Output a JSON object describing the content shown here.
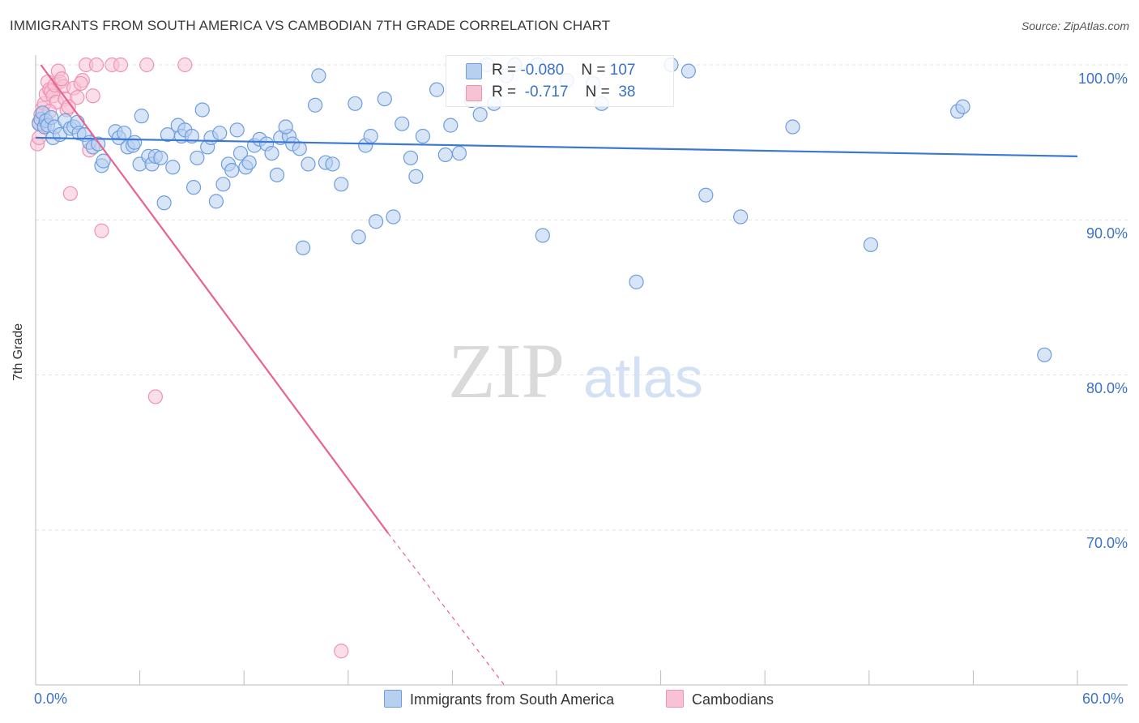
{
  "title": "IMMIGRANTS FROM SOUTH AMERICA VS CAMBODIAN 7TH GRADE CORRELATION CHART",
  "source": "Source: ZipAtlas.com",
  "watermark": {
    "zip": "ZIP",
    "atlas": "atlas"
  },
  "colors": {
    "blue_fill": "#b8d0f0",
    "blue_stroke": "#6d9de0",
    "blue_line": "#3a78d4",
    "pink_fill": "#f7c2d3",
    "pink_stroke": "#ee93b2",
    "pink_line": "#e8638f",
    "grid": "#e2e2e2",
    "axis_text": "#3b72c6"
  },
  "legend": {
    "rows": [
      {
        "r_label": "R =",
        "r_value": "-0.080",
        "n_label": "N =",
        "n_value": "107"
      },
      {
        "r_label": "R =",
        "r_value": "-0.717",
        "n_label": "N =",
        "n_value": "38"
      }
    ]
  },
  "bottom_legend": [
    "Immigrants from South America",
    "Cambodians"
  ],
  "chart_data": {
    "type": "scatter",
    "title": "IMMIGRANTS FROM SOUTH AMERICA VS CAMBODIAN 7TH GRADE CORRELATION CHART",
    "xlabel": "",
    "ylabel": "7th Grade",
    "xlim": [
      0,
      60
    ],
    "ylim": [
      60,
      100
    ],
    "x_tick_labels": [
      "0.0%",
      "60.0%"
    ],
    "y_tick_labels": [
      "100.0%",
      "90.0%",
      "80.0%",
      "70.0%"
    ],
    "y_ticks": [
      100,
      90,
      80,
      70
    ],
    "series": [
      {
        "name": "Immigrants from South America",
        "R": -0.08,
        "N": 107,
        "trend": {
          "x0": 0,
          "y0": 95.3,
          "x1": 60,
          "y1": 94.1
        },
        "points": [
          [
            0.2,
            96.2
          ],
          [
            0.3,
            96.5
          ],
          [
            0.4,
            96.9
          ],
          [
            0.5,
            96.0
          ],
          [
            0.6,
            96.4
          ],
          [
            0.7,
            96.1
          ],
          [
            0.9,
            96.6
          ],
          [
            1.0,
            95.3
          ],
          [
            1.1,
            96.0
          ],
          [
            1.4,
            95.5
          ],
          [
            1.7,
            96.4
          ],
          [
            2.0,
            95.9
          ],
          [
            2.2,
            96.0
          ],
          [
            2.4,
            96.3
          ],
          [
            2.5,
            95.6
          ],
          [
            2.8,
            95.5
          ],
          [
            3.1,
            95.0
          ],
          [
            3.3,
            94.7
          ],
          [
            3.6,
            94.9
          ],
          [
            3.8,
            93.5
          ],
          [
            3.9,
            93.8
          ],
          [
            4.6,
            95.7
          ],
          [
            4.8,
            95.3
          ],
          [
            5.1,
            95.6
          ],
          [
            5.3,
            94.7
          ],
          [
            5.6,
            94.8
          ],
          [
            5.7,
            95.0
          ],
          [
            6.0,
            93.6
          ],
          [
            6.1,
            96.7
          ],
          [
            6.5,
            94.1
          ],
          [
            6.7,
            93.6
          ],
          [
            6.9,
            94.1
          ],
          [
            7.4,
            91.1
          ],
          [
            7.6,
            95.5
          ],
          [
            7.9,
            93.4
          ],
          [
            8.2,
            96.1
          ],
          [
            8.4,
            95.4
          ],
          [
            8.6,
            95.8
          ],
          [
            9.0,
            95.4
          ],
          [
            9.1,
            92.1
          ],
          [
            9.3,
            94.0
          ],
          [
            9.6,
            97.1
          ],
          [
            9.9,
            94.7
          ],
          [
            10.1,
            95.3
          ],
          [
            10.4,
            91.2
          ],
          [
            10.6,
            95.6
          ],
          [
            10.8,
            92.3
          ],
          [
            11.1,
            93.6
          ],
          [
            11.3,
            93.2
          ],
          [
            11.6,
            95.8
          ],
          [
            11.8,
            94.3
          ],
          [
            12.1,
            93.4
          ],
          [
            12.3,
            93.7
          ],
          [
            12.6,
            94.8
          ],
          [
            12.9,
            95.2
          ],
          [
            13.3,
            94.9
          ],
          [
            13.6,
            94.3
          ],
          [
            13.9,
            92.9
          ],
          [
            14.1,
            95.3
          ],
          [
            14.6,
            95.4
          ],
          [
            14.8,
            94.9
          ],
          [
            15.2,
            94.6
          ],
          [
            15.4,
            88.2
          ],
          [
            15.7,
            93.6
          ],
          [
            16.1,
            97.4
          ],
          [
            16.3,
            99.3
          ],
          [
            16.7,
            93.7
          ],
          [
            17.1,
            93.6
          ],
          [
            17.6,
            92.3
          ],
          [
            18.4,
            97.5
          ],
          [
            18.6,
            88.9
          ],
          [
            19.0,
            94.8
          ],
          [
            19.3,
            95.4
          ],
          [
            19.6,
            89.9
          ],
          [
            20.1,
            97.8
          ],
          [
            20.6,
            90.2
          ],
          [
            21.1,
            96.2
          ],
          [
            21.6,
            94.0
          ],
          [
            21.9,
            92.8
          ],
          [
            22.3,
            95.4
          ],
          [
            23.1,
            98.4
          ],
          [
            23.6,
            94.2
          ],
          [
            23.9,
            96.1
          ],
          [
            24.4,
            94.3
          ],
          [
            25.1,
            97.7
          ],
          [
            26.0,
            100.0
          ],
          [
            26.4,
            97.5
          ],
          [
            27.1,
            99.3
          ],
          [
            27.6,
            100.0
          ],
          [
            28.9,
            100.0
          ],
          [
            29.2,
            89.0
          ],
          [
            30.6,
            99.0
          ],
          [
            32.1,
            98.8
          ],
          [
            32.6,
            97.5
          ],
          [
            34.6,
            86.0
          ],
          [
            36.6,
            100.0
          ],
          [
            37.6,
            99.6
          ],
          [
            38.6,
            91.6
          ],
          [
            40.6,
            90.2
          ],
          [
            43.6,
            96.0
          ],
          [
            48.1,
            88.4
          ],
          [
            53.1,
            97.0
          ],
          [
            53.4,
            97.3
          ],
          [
            58.1,
            81.3
          ],
          [
            25.6,
            96.8
          ],
          [
            7.2,
            94.0
          ],
          [
            14.4,
            96.0
          ]
        ]
      },
      {
        "name": "Cambodians",
        "R": -0.717,
        "N": 38,
        "trend": {
          "x0": 0.3,
          "y0": 100.0,
          "x1": 20.3,
          "y1": 69.8
        },
        "trend_dashed": {
          "x0": 20.3,
          "y0": 69.8,
          "x1": 27.0,
          "y1": 60.0
        },
        "points": [
          [
            0.1,
            94.9
          ],
          [
            0.2,
            96.3
          ],
          [
            0.3,
            96.8
          ],
          [
            0.4,
            97.2
          ],
          [
            0.5,
            97.5
          ],
          [
            0.6,
            98.1
          ],
          [
            0.7,
            98.9
          ],
          [
            0.8,
            98.4
          ],
          [
            0.9,
            98.3
          ],
          [
            1.0,
            98.0
          ],
          [
            1.1,
            98.7
          ],
          [
            1.2,
            97.6
          ],
          [
            1.3,
            99.6
          ],
          [
            1.4,
            98.9
          ],
          [
            1.6,
            98.6
          ],
          [
            1.7,
            97.8
          ],
          [
            1.8,
            97.1
          ],
          [
            2.0,
            91.7
          ],
          [
            2.2,
            98.5
          ],
          [
            2.4,
            97.9
          ],
          [
            2.7,
            99.0
          ],
          [
            2.9,
            100.0
          ],
          [
            3.1,
            94.5
          ],
          [
            3.3,
            98.0
          ],
          [
            3.5,
            100.0
          ],
          [
            3.8,
            89.3
          ],
          [
            4.4,
            100.0
          ],
          [
            4.9,
            100.0
          ],
          [
            6.4,
            100.0
          ],
          [
            6.9,
            78.6
          ],
          [
            8.6,
            100.0
          ],
          [
            17.6,
            62.2
          ],
          [
            0.5,
            96.1
          ],
          [
            0.8,
            97.0
          ],
          [
            1.5,
            99.1
          ],
          [
            2.6,
            98.8
          ],
          [
            0.2,
            95.3
          ],
          [
            1.9,
            97.3
          ]
        ]
      }
    ]
  }
}
